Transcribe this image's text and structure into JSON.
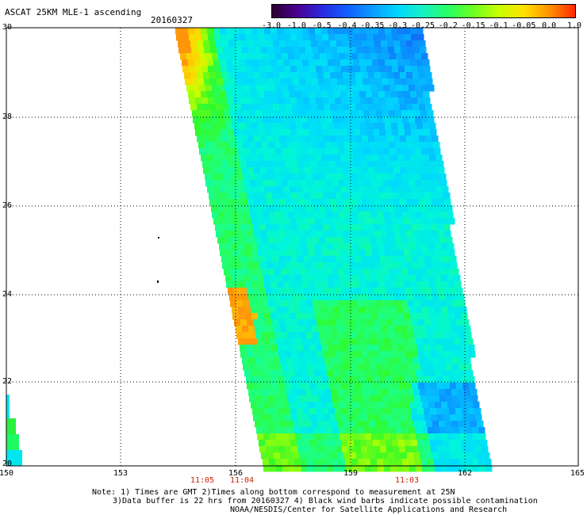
{
  "header": {
    "title": "ASCAT 25KM MLE-1 ascending",
    "date": "20160327"
  },
  "colorbar": {
    "labels": [
      "-3.0",
      "-1.0",
      "-0.5",
      "-0.4",
      "-0.35",
      "-0.3",
      "-0.25",
      "-0.2",
      "-0.15",
      "-0.1",
      "-0.05",
      "0.0",
      "1.0"
    ],
    "colors": [
      "#2a0030",
      "#4a0090",
      "#2a2ae0",
      "#1060ff",
      "#0c9cff",
      "#00d8ff",
      "#18f0c0",
      "#28ff60",
      "#70ff20",
      "#c8ff00",
      "#ffe000",
      "#ff9000",
      "#ff2800"
    ]
  },
  "axes": {
    "lat_labels": [
      "30",
      "28",
      "26",
      "24",
      "22",
      "20"
    ],
    "lon_labels": [
      "150",
      "153",
      "156",
      "159",
      "162",
      "165"
    ]
  },
  "times": [
    "11:05",
    "11:04",
    "11:03"
  ],
  "notes": {
    "line1": "Note: 1) Times are GMT 2)Times along bottom correspond to measurement at 25N",
    "line2": "3)Data buffer is 22 hrs from 20160327 4) Black wind barbs indicate possible contamination",
    "line3": "NOAA/NESDIS/Center for Satellite Applications and Research"
  }
}
